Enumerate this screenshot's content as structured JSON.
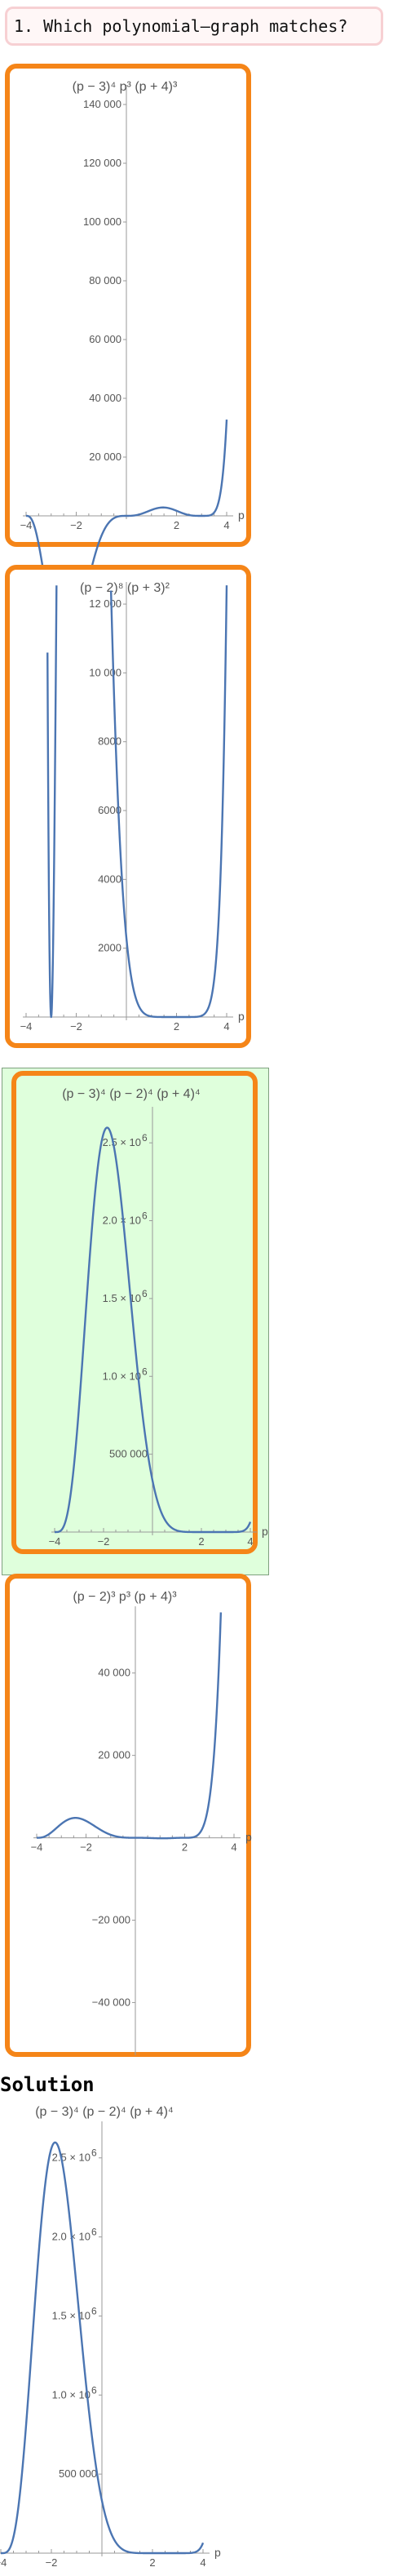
{
  "question": {
    "text": "1. Which polynomial–graph matches?"
  },
  "solution_heading": "Solution",
  "colors": {
    "curve": "#4b75b2",
    "option_border": "#f58518",
    "selected_bg": "#dfffdc"
  },
  "options": [
    {
      "title": "(p − 3)⁴ p³ (p + 4)³",
      "xlabel": "p"
    },
    {
      "title": "(p − 2)⁸ (p + 3)²",
      "xlabel": "p"
    },
    {
      "title": "(p − 3)⁴ (p − 2)⁴ (p + 4)⁴",
      "xlabel": "p",
      "selected": true
    },
    {
      "title": "(p − 2)³ p³ (p + 4)³",
      "xlabel": "p"
    }
  ],
  "solution": {
    "title": "(p − 3)⁴ (p − 2)⁴ (p + 4)⁴",
    "xlabel": "p"
  },
  "chart_data": [
    {
      "type": "line",
      "title": "(p − 3)⁴ p³ (p + 4)³",
      "xlabel": "p",
      "ylabel": "",
      "function": "(p-3)^4 * p^3 * (p+4)^3",
      "xlim": [
        -4,
        4
      ],
      "ylim": [
        0,
        145000
      ],
      "xticks": [
        -4,
        -2,
        2,
        4
      ],
      "xtick_labels": [
        "−4",
        "−2",
        "2",
        "4"
      ],
      "yticks": [
        20000,
        40000,
        60000,
        80000,
        100000,
        120000,
        140000
      ],
      "ytick_labels": [
        "20 000",
        "40 000",
        "60 000",
        "80 000",
        "100 000",
        "120 000",
        "140 000"
      ]
    },
    {
      "type": "line",
      "title": "(p − 2)⁸ (p + 3)²",
      "xlabel": "p",
      "ylabel": "",
      "function": "(p-2)^8 * (p+3)^2",
      "xlim": [
        -4,
        4
      ],
      "ylim": [
        0,
        12500
      ],
      "xticks": [
        -4,
        -2,
        2,
        4
      ],
      "xtick_labels": [
        "−4",
        "−2",
        "2",
        "4"
      ],
      "yticks": [
        2000,
        4000,
        6000,
        8000,
        10000,
        12000
      ],
      "ytick_labels": [
        "2000",
        "4000",
        "6000",
        "8000",
        "10 000",
        "12 000"
      ]
    },
    {
      "type": "line",
      "title": "(p − 3)⁴ (p − 2)⁴ (p + 4)⁴",
      "xlabel": "p",
      "ylabel": "",
      "function": "(p-3)^4 * (p-2)^4 * (p+4)^4",
      "xlim": [
        -4,
        4
      ],
      "ylim": [
        0,
        2700000
      ],
      "xticks": [
        -4,
        -2,
        2,
        4
      ],
      "xtick_labels": [
        "−4",
        "−2",
        "2",
        "4"
      ],
      "yticks": [
        500000,
        1000000,
        1500000,
        2000000,
        2500000
      ],
      "ytick_labels": [
        "500 000",
        "1.0 × 10",
        "1.5 × 10",
        "2.0 × 10",
        "2.5 × 10"
      ],
      "ytick_exponents": [
        "",
        "6",
        "6",
        "6",
        "6"
      ]
    },
    {
      "type": "line",
      "title": "(p − 2)³ p³ (p + 4)³",
      "xlabel": "p",
      "ylabel": "",
      "function": "(p-2)^3 * p^3 * (p+4)^3",
      "xlim": [
        -4,
        4
      ],
      "ylim": [
        -52000,
        55000
      ],
      "xticks": [
        -4,
        -2,
        2,
        4
      ],
      "xtick_labels": [
        "−4",
        "−2",
        "2",
        "4"
      ],
      "yticks": [
        -40000,
        -20000,
        20000,
        40000
      ],
      "ytick_labels": [
        "−40 000",
        "−20 000",
        "20 000",
        "40 000"
      ]
    },
    {
      "type": "line",
      "title": "(p − 3)⁴ (p − 2)⁴ (p + 4)⁴",
      "xlabel": "p",
      "ylabel": "",
      "function": "(p-3)^4 * (p-2)^4 * (p+4)^4",
      "xlim": [
        -4,
        4
      ],
      "ylim": [
        0,
        2700000
      ],
      "xticks": [
        -4,
        -2,
        2,
        4
      ],
      "xtick_labels": [
        "−4",
        "−2",
        "2",
        "4"
      ],
      "yticks": [
        500000,
        1000000,
        1500000,
        2000000,
        2500000
      ],
      "ytick_labels": [
        "500 000",
        "1.0 × 10",
        "1.5 × 10",
        "2.0 × 10",
        "2.5 × 10"
      ],
      "ytick_exponents": [
        "",
        "6",
        "6",
        "6",
        "6"
      ]
    }
  ]
}
